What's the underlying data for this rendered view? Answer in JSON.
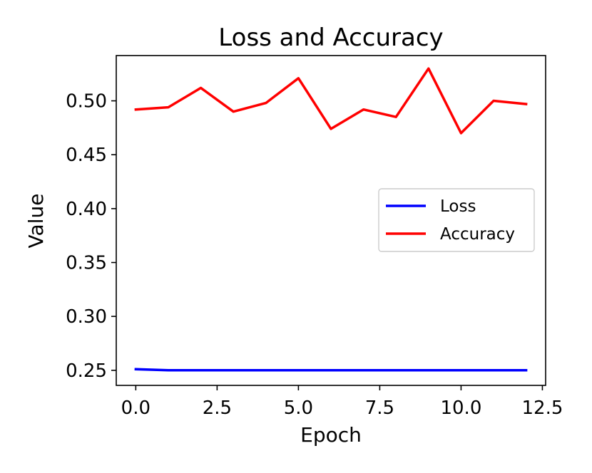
{
  "chart_data": {
    "type": "line",
    "title": "Loss and Accuracy",
    "xlabel": "Epoch",
    "ylabel": "Value",
    "xlim": [
      -0.6,
      12.6
    ],
    "ylim": [
      0.236,
      0.542
    ],
    "xticks": [
      0,
      2.5,
      5,
      7.5,
      10,
      12.5
    ],
    "xtick_labels": [
      "0.0",
      "2.5",
      "5.0",
      "7.5",
      "10.0",
      "12.5"
    ],
    "yticks": [
      0.25,
      0.3,
      0.35,
      0.4,
      0.45,
      0.5
    ],
    "ytick_labels": [
      "0.25",
      "0.30",
      "0.35",
      "0.40",
      "0.45",
      "0.50"
    ],
    "grid": false,
    "legend_position": "center-right",
    "x": [
      0,
      1,
      2,
      3,
      4,
      5,
      6,
      7,
      8,
      9,
      10,
      11,
      12
    ],
    "series": [
      {
        "name": "Loss",
        "color": "#0000ff",
        "values": [
          0.251,
          0.25,
          0.25,
          0.25,
          0.25,
          0.25,
          0.25,
          0.25,
          0.25,
          0.25,
          0.25,
          0.25,
          0.25
        ]
      },
      {
        "name": "Accuracy",
        "color": "#ff0000",
        "values": [
          0.492,
          0.494,
          0.512,
          0.49,
          0.498,
          0.521,
          0.474,
          0.492,
          0.485,
          0.53,
          0.47,
          0.5,
          0.497
        ]
      }
    ]
  }
}
